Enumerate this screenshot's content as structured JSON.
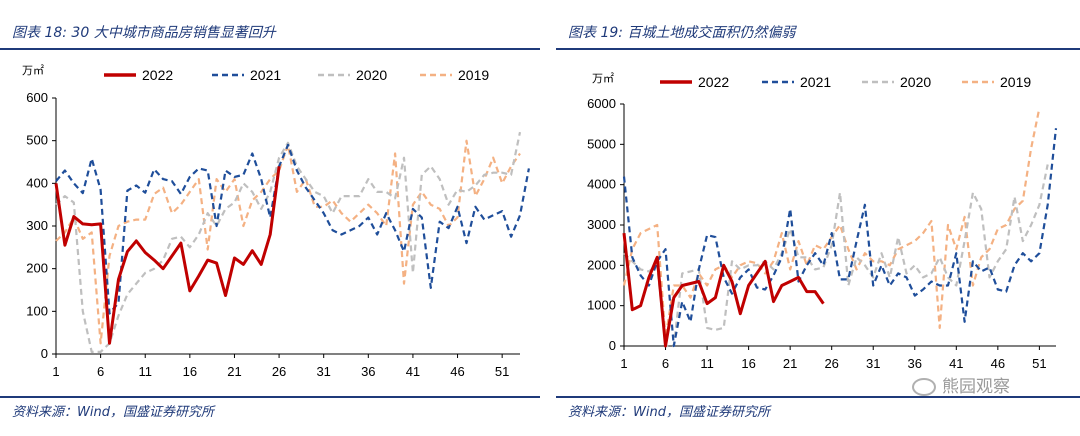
{
  "colors": {
    "title": "#1f3a7a",
    "s2022": "#c00000",
    "s2021": "#1f4e9a",
    "s2020": "#bfbfbf",
    "s2019": "#f4b183"
  },
  "left": {
    "title": "图表 18:  30 大中城市商品房销售显著回升",
    "source": "资料来源：Wind，国盛证券研究所"
  },
  "right": {
    "title": "图表 19:  百城土地成交面积仍然偏弱",
    "source": "资料来源：Wind，国盛证券研究所"
  },
  "watermark": {
    "text": "熊园观察",
    "icon": "wechat-icon"
  },
  "chart_data": [
    {
      "type": "line",
      "unit": "万㎡",
      "ylim": [
        0,
        600
      ],
      "yticks": [
        0,
        100,
        200,
        300,
        400,
        500,
        600
      ],
      "xlim": [
        1,
        53
      ],
      "xticks": [
        1,
        6,
        11,
        16,
        21,
        26,
        31,
        36,
        41,
        46,
        51
      ],
      "series": [
        {
          "name": "2022",
          "style": "solid",
          "values": [
            400,
            255,
            322,
            305,
            303,
            305,
            25,
            175,
            240,
            265,
            238,
            220,
            200,
            230,
            260,
            148,
            183,
            220,
            213,
            137,
            225,
            210,
            242,
            210,
            280,
            440
          ]
        },
        {
          "name": "2021",
          "style": "dashed",
          "values": [
            405,
            430,
            400,
            377,
            458,
            385,
            95,
            120,
            383,
            395,
            378,
            433,
            410,
            405,
            375,
            415,
            435,
            430,
            300,
            430,
            415,
            420,
            470,
            410,
            320,
            440,
            490,
            430,
            390,
            360,
            330,
            290,
            280,
            290,
            300,
            320,
            280,
            330,
            290,
            240,
            340,
            320,
            155,
            310,
            295,
            345,
            260,
            345,
            315,
            325,
            335,
            275,
            325,
            435
          ]
        },
        {
          "name": "2020",
          "style": "dashed",
          "values": [
            350,
            370,
            355,
            100,
            5,
            5,
            25,
            90,
            140,
            165,
            190,
            200,
            220,
            270,
            275,
            250,
            280,
            330,
            300,
            340,
            355,
            400,
            380,
            340,
            380,
            460,
            495,
            440,
            410,
            380,
            370,
            330,
            370,
            370,
            370,
            410,
            380,
            380,
            365,
            460,
            190,
            420,
            440,
            410,
            350,
            385,
            380,
            395,
            420,
            425,
            425,
            420,
            520
          ]
        },
        {
          "name": "2019",
          "style": "dashed",
          "values": [
            265,
            285,
            320,
            270,
            285,
            25,
            230,
            300,
            310,
            315,
            315,
            375,
            390,
            330,
            350,
            380,
            410,
            245,
            410,
            380,
            410,
            300,
            360,
            380,
            410,
            430,
            490,
            380,
            410,
            345,
            345,
            360,
            330,
            310,
            330,
            350,
            330,
            300,
            470,
            165,
            350,
            380,
            350,
            340,
            300,
            320,
            500,
            370,
            410,
            460,
            400,
            440,
            470
          ]
        }
      ],
      "legend": [
        "2022",
        "2021",
        "2020",
        "2019"
      ]
    },
    {
      "type": "line",
      "unit": "万㎡",
      "ylim": [
        0,
        6000
      ],
      "yticks": [
        0,
        1000,
        2000,
        3000,
        4000,
        5000,
        6000
      ],
      "xlim": [
        1,
        53
      ],
      "xticks": [
        1,
        6,
        11,
        16,
        21,
        26,
        31,
        36,
        41,
        46,
        51
      ],
      "series": [
        {
          "name": "2022",
          "style": "solid",
          "values": [
            2800,
            900,
            1000,
            1700,
            2200,
            0,
            1200,
            1500,
            1550,
            1600,
            1050,
            1200,
            2000,
            1600,
            800,
            1500,
            1800,
            2100,
            1100,
            1500,
            1600,
            1700,
            1350,
            1350,
            1050
          ]
        },
        {
          "name": "2021",
          "style": "dashed",
          "values": [
            4200,
            2200,
            1750,
            1500,
            2100,
            2400,
            0,
            1100,
            600,
            1900,
            2750,
            2700,
            1700,
            1300,
            1700,
            1900,
            1450,
            1400,
            1750,
            2200,
            3400,
            1600,
            2000,
            2300,
            2000,
            2800,
            1650,
            1650,
            2600,
            3500,
            1500,
            2000,
            1500,
            1800,
            1700,
            1250,
            1400,
            1600,
            1500,
            1500,
            2300,
            600,
            2100,
            1850,
            1950,
            1400,
            1350,
            2000,
            2300,
            2100,
            2300,
            3500,
            5400
          ]
        },
        {
          "name": "2020",
          "style": "dashed",
          "values": [
            2300,
            2100,
            1900,
            1850,
            2000,
            0,
            0,
            1800,
            1850,
            1900,
            450,
            400,
            450,
            2100,
            1900,
            2000,
            2000,
            2100,
            1900,
            2300,
            2900,
            2200,
            2200,
            1900,
            1950,
            2500,
            3800,
            1500,
            2200,
            2000,
            1700,
            2300,
            1700,
            2700,
            1800,
            2000,
            1700,
            1800,
            2200,
            1700,
            1500,
            2600,
            3800,
            3400,
            1700,
            2100,
            2400,
            3700,
            2600,
            3000,
            3500,
            4500
          ]
        },
        {
          "name": "2019",
          "style": "dashed",
          "values": [
            1500,
            2400,
            2800,
            2900,
            3000,
            200,
            1500,
            1500,
            1200,
            1800,
            1500,
            1900,
            2000,
            1700,
            2000,
            2100,
            2050,
            1800,
            2100,
            2800,
            1900,
            2600,
            2000,
            2500,
            2400,
            2700,
            3000,
            2400,
            1900,
            2300,
            2100,
            2100,
            2000,
            2400,
            2500,
            2600,
            2800,
            3100,
            450,
            3000,
            2400,
            3200,
            1500,
            2200,
            2400,
            2900,
            3000,
            3400,
            3600,
            4900,
            5900
          ]
        }
      ],
      "legend": [
        "2022",
        "2021",
        "2020",
        "2019"
      ]
    }
  ]
}
